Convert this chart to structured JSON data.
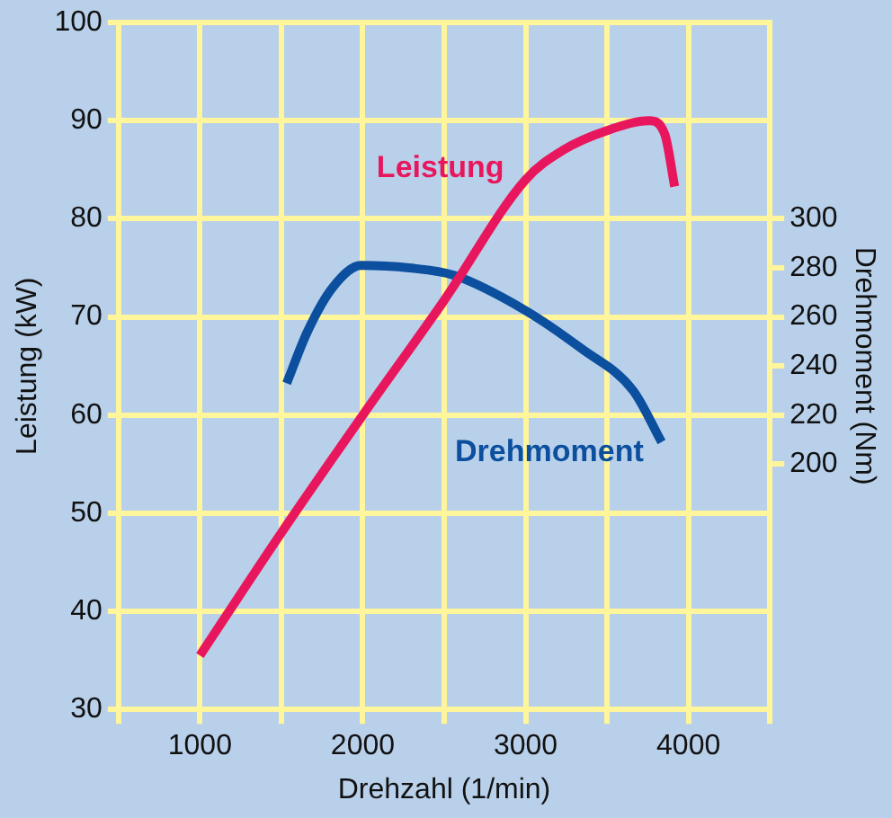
{
  "chart_data": {
    "type": "line",
    "xlabel": "Drehzahl (1/min)",
    "ylabel": "Leistung (kW)",
    "y2label": "Drehmoment (Nm)",
    "xlim": [
      500,
      4500
    ],
    "xticks": [
      {
        "value": 500,
        "label": null
      },
      1000,
      {
        "value": 1500,
        "label": null
      },
      2000,
      {
        "value": 2500,
        "label": null
      },
      3000,
      {
        "value": 3500,
        "label": null
      },
      4000,
      {
        "value": 4500,
        "label": null
      }
    ],
    "ylim": [
      30,
      100
    ],
    "yticks": [
      30,
      40,
      50,
      60,
      70,
      80,
      90,
      100
    ],
    "y2lim": [
      100,
      380
    ],
    "y2ticks": [
      200,
      220,
      240,
      260,
      280,
      300
    ],
    "grid": true,
    "legend": false,
    "marker": "none",
    "line_style": "solid",
    "series": [
      {
        "name": "Leistung",
        "color": "#e8175d",
        "x": [
          1000,
          1500,
          2000,
          2500,
          3000,
          3230,
          3500,
          3760,
          3855,
          3915
        ],
        "values": [
          35.5,
          48,
          60,
          71.7,
          84,
          87,
          89,
          90,
          88.6,
          83.3
        ]
      },
      {
        "name": "Drehmoment",
        "color": "#0b4f9e",
        "axis": "y2",
        "x": [
          1533,
          1660,
          1815,
          1990,
          2285,
          2560,
          2990,
          3345,
          3660,
          3835
        ],
        "values": [
          233,
          254,
          272,
          281,
          280,
          277,
          263,
          247,
          230,
          209
        ]
      }
    ]
  }
}
